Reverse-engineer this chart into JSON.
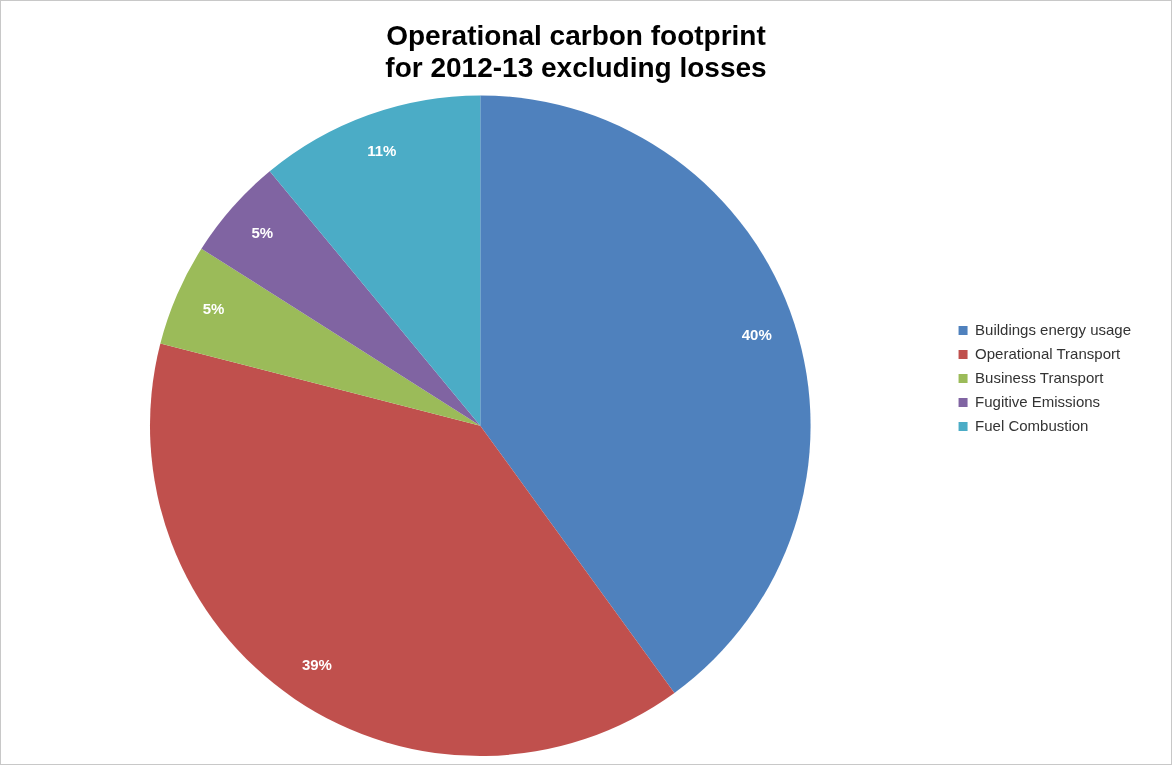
{
  "chart_data": {
    "type": "pie",
    "title": "Operational carbon footprint\nfor 2012-13 excluding losses",
    "categories": [
      "Buildings energy usage",
      "Operational Transport",
      "Business Transport",
      "Fugitive Emissions",
      "Fuel Combustion"
    ],
    "values": [
      40,
      39,
      5,
      5,
      11
    ],
    "colors": [
      "#4f81bd",
      "#c0504d",
      "#9bbb59",
      "#8064a2",
      "#4bacc6"
    ],
    "value_labels": [
      "40%",
      "39%",
      "5%",
      "5%",
      "11%"
    ],
    "legend": "right"
  }
}
